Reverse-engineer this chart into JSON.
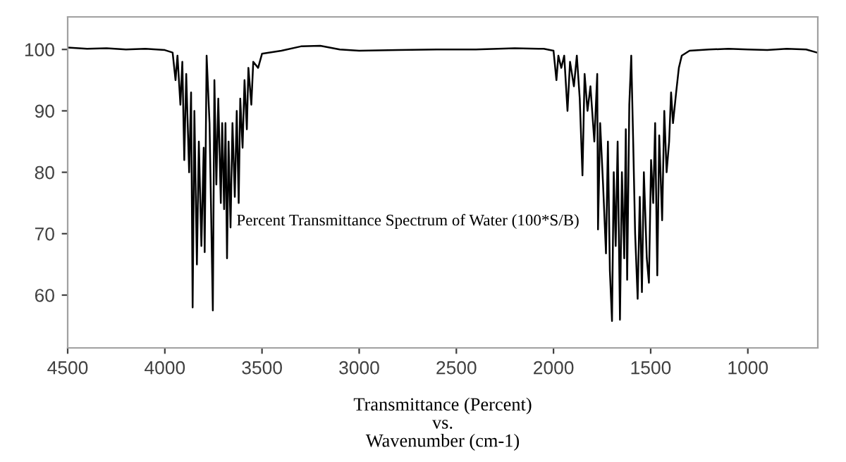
{
  "chart_data": {
    "type": "line",
    "xlabel": "Transmittance (Percent)\nvs.\nWavenumber (cm-1)",
    "annotations": [
      "Percent Transmittance Spectrum of Water (100*S/B)"
    ],
    "xlim": [
      4500,
      640
    ],
    "ylim": [
      51.4,
      105.3
    ],
    "xticks": [
      4500,
      4000,
      3500,
      3000,
      2500,
      2000,
      1500,
      1000
    ],
    "yticks": [
      60,
      70,
      80,
      90,
      100
    ],
    "grid": false,
    "marker": "none",
    "line_style": "solid",
    "series": [
      {
        "color": "#000000",
        "x": [
          4500,
          4400,
          4300,
          4200,
          4100,
          4000,
          3960,
          3945,
          3935,
          3920,
          3910,
          3900,
          3890,
          3875,
          3865,
          3857,
          3848,
          3835,
          3825,
          3812,
          3800,
          3795,
          3785,
          3770,
          3753,
          3745,
          3735,
          3725,
          3712,
          3705,
          3695,
          3688,
          3680,
          3672,
          3662,
          3652,
          3640,
          3630,
          3620,
          3612,
          3600,
          3590,
          3578,
          3570,
          3555,
          3545,
          3520,
          3500,
          3400,
          3300,
          3200,
          3100,
          3000,
          2800,
          2600,
          2400,
          2200,
          2050,
          2000,
          1985,
          1975,
          1960,
          1945,
          1928,
          1915,
          1895,
          1880,
          1865,
          1851,
          1840,
          1825,
          1810,
          1790,
          1775,
          1771,
          1760,
          1745,
          1730,
          1720,
          1710,
          1699,
          1690,
          1680,
          1670,
          1658,
          1648,
          1636,
          1628,
          1621,
          1610,
          1600,
          1590,
          1580,
          1567,
          1556,
          1545,
          1535,
          1520,
          1509,
          1498,
          1487,
          1477,
          1466,
          1456,
          1441,
          1430,
          1418,
          1405,
          1395,
          1385,
          1369,
          1355,
          1340,
          1300,
          1200,
          1100,
          1000,
          900,
          800,
          700,
          645
        ],
        "values": [
          100.3,
          100.1,
          100.2,
          100.0,
          100.1,
          99.9,
          99.5,
          95,
          99,
          91,
          98,
          82,
          96,
          80,
          93,
          58,
          90,
          65,
          85,
          68,
          84,
          67,
          99,
          88,
          57.5,
          95,
          78,
          92,
          75,
          88,
          74,
          88,
          66,
          85,
          71,
          88,
          76,
          90,
          75,
          92,
          84,
          95,
          87,
          97,
          91,
          98,
          97,
          99.3,
          99.8,
          100.5,
          100.6,
          100,
          99.8,
          99.9,
          100,
          100,
          100.2,
          100.1,
          99.8,
          95,
          99,
          97,
          99,
          90,
          98,
          94,
          99,
          92,
          79.5,
          96,
          90,
          94,
          85,
          96,
          70.7,
          88,
          78,
          66.8,
          85,
          64,
          55.8,
          80,
          68,
          85,
          56,
          80,
          66,
          87,
          62.5,
          91,
          99,
          85,
          70,
          59.4,
          76,
          60.5,
          80,
          66,
          62,
          82,
          75,
          88,
          63.2,
          86,
          72.2,
          90,
          80,
          85,
          93,
          88,
          93,
          97,
          99,
          99.8,
          100,
          100.1,
          100,
          99.9,
          100.1,
          100,
          99.5
        ]
      }
    ]
  }
}
